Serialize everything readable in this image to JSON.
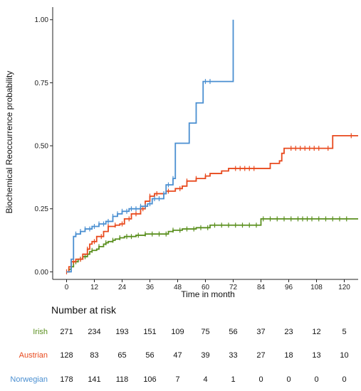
{
  "chart_data": {
    "type": "line",
    "subtype": "kaplan-meier-step",
    "xlabel": "Time in month",
    "ylabel": "Biochemical Reoccurrence probability",
    "xlim": [
      -6,
      126
    ],
    "ylim": [
      -0.03,
      1.05
    ],
    "x_ticks": [
      0,
      12,
      24,
      36,
      48,
      60,
      72,
      84,
      96,
      108,
      120
    ],
    "y_ticks": [
      0.0,
      0.25,
      0.5,
      0.75,
      1.0
    ],
    "y_tick_labels": [
      "0.00",
      "0.25",
      "0.50",
      "0.75",
      "1.00"
    ],
    "grid": false,
    "series": [
      {
        "name": "Irish",
        "color": "#5a8f1e",
        "steps": [
          [
            0,
            0
          ],
          [
            1,
            0.01
          ],
          [
            2,
            0.02
          ],
          [
            3,
            0.04
          ],
          [
            5,
            0.05
          ],
          [
            7,
            0.06
          ],
          [
            9,
            0.07
          ],
          [
            10,
            0.08
          ],
          [
            11,
            0.085
          ],
          [
            13,
            0.09
          ],
          [
            14,
            0.1
          ],
          [
            16,
            0.11
          ],
          [
            17,
            0.115
          ],
          [
            18,
            0.12
          ],
          [
            20,
            0.125
          ],
          [
            21,
            0.13
          ],
          [
            23,
            0.135
          ],
          [
            25,
            0.14
          ],
          [
            30,
            0.145
          ],
          [
            34,
            0.15
          ],
          [
            44,
            0.16
          ],
          [
            46,
            0.165
          ],
          [
            50,
            0.17
          ],
          [
            56,
            0.175
          ],
          [
            62,
            0.185
          ],
          [
            84,
            0.21
          ],
          [
            126,
            0.21
          ]
        ],
        "censors": [
          2,
          4,
          6,
          8,
          11,
          14,
          17,
          20,
          23,
          26,
          28,
          31,
          34,
          37,
          40,
          43,
          46,
          49,
          52,
          55,
          58,
          61,
          64,
          67,
          70,
          73,
          76,
          79,
          82,
          85,
          88,
          91,
          94,
          97,
          100,
          102,
          104,
          106,
          109,
          112,
          115,
          118,
          121
        ]
      },
      {
        "name": "Austrian",
        "color": "#e8491d",
        "steps": [
          [
            0,
            0
          ],
          [
            1,
            0.02
          ],
          [
            2,
            0.04
          ],
          [
            4,
            0.05
          ],
          [
            7,
            0.07
          ],
          [
            9,
            0.09
          ],
          [
            10,
            0.11
          ],
          [
            11,
            0.12
          ],
          [
            13,
            0.14
          ],
          [
            16,
            0.16
          ],
          [
            18,
            0.18
          ],
          [
            21,
            0.185
          ],
          [
            23,
            0.19
          ],
          [
            25,
            0.21
          ],
          [
            28,
            0.23
          ],
          [
            32,
            0.25
          ],
          [
            34,
            0.28
          ],
          [
            36,
            0.3
          ],
          [
            38,
            0.31
          ],
          [
            43,
            0.32
          ],
          [
            47,
            0.33
          ],
          [
            50,
            0.34
          ],
          [
            52,
            0.36
          ],
          [
            56,
            0.37
          ],
          [
            60,
            0.38
          ],
          [
            62,
            0.39
          ],
          [
            67,
            0.4
          ],
          [
            70,
            0.41
          ],
          [
            84,
            0.41
          ],
          [
            88,
            0.43
          ],
          [
            92,
            0.44
          ],
          [
            93,
            0.47
          ],
          [
            94,
            0.49
          ],
          [
            114,
            0.49
          ],
          [
            115,
            0.54
          ],
          [
            126,
            0.54
          ]
        ],
        "censors": [
          0,
          3,
          6,
          9,
          12,
          15,
          18,
          21,
          24,
          27,
          30,
          33,
          36,
          39,
          44,
          49,
          52,
          56,
          60,
          73,
          75,
          77,
          79,
          81,
          97,
          99,
          101,
          103,
          105,
          107,
          109,
          113,
          123
        ]
      },
      {
        "name": "Norwegian",
        "color": "#4a8fd1",
        "steps": [
          [
            0,
            0
          ],
          [
            2,
            0.05
          ],
          [
            3,
            0.14
          ],
          [
            4,
            0.15
          ],
          [
            6,
            0.16
          ],
          [
            8,
            0.17
          ],
          [
            11,
            0.18
          ],
          [
            14,
            0.19
          ],
          [
            17,
            0.2
          ],
          [
            20,
            0.22
          ],
          [
            22,
            0.23
          ],
          [
            24,
            0.24
          ],
          [
            27,
            0.25
          ],
          [
            32,
            0.26
          ],
          [
            35,
            0.27
          ],
          [
            37,
            0.29
          ],
          [
            42,
            0.31
          ],
          [
            43,
            0.345
          ],
          [
            46,
            0.37
          ],
          [
            47,
            0.51
          ],
          [
            53,
            0.59
          ],
          [
            56,
            0.67
          ],
          [
            59,
            0.755
          ],
          [
            72,
            0.755
          ],
          [
            72,
            1.0
          ]
        ],
        "censors": [
          4,
          6,
          8,
          10,
          12,
          14,
          16,
          18,
          20,
          22,
          24,
          26,
          28,
          30,
          32,
          34,
          36,
          38,
          40,
          42,
          44,
          46,
          60,
          62
        ]
      }
    ]
  },
  "risk_table": {
    "title": "Number at risk",
    "rows": [
      {
        "label": "Irish",
        "color": "#5a8f1e",
        "values": [
          "271",
          "234",
          "193",
          "151",
          "109",
          "75",
          "56",
          "37",
          "23",
          "12",
          "5"
        ]
      },
      {
        "label": "Austrian",
        "color": "#e8491d",
        "values": [
          "128",
          "83",
          "65",
          "56",
          "47",
          "39",
          "33",
          "27",
          "18",
          "13",
          "10"
        ]
      },
      {
        "label": "Norwegian",
        "color": "#4a8fd1",
        "values": [
          "178",
          "141",
          "118",
          "106",
          "7",
          "4",
          "1",
          "0",
          "0",
          "0",
          "0"
        ]
      }
    ]
  }
}
